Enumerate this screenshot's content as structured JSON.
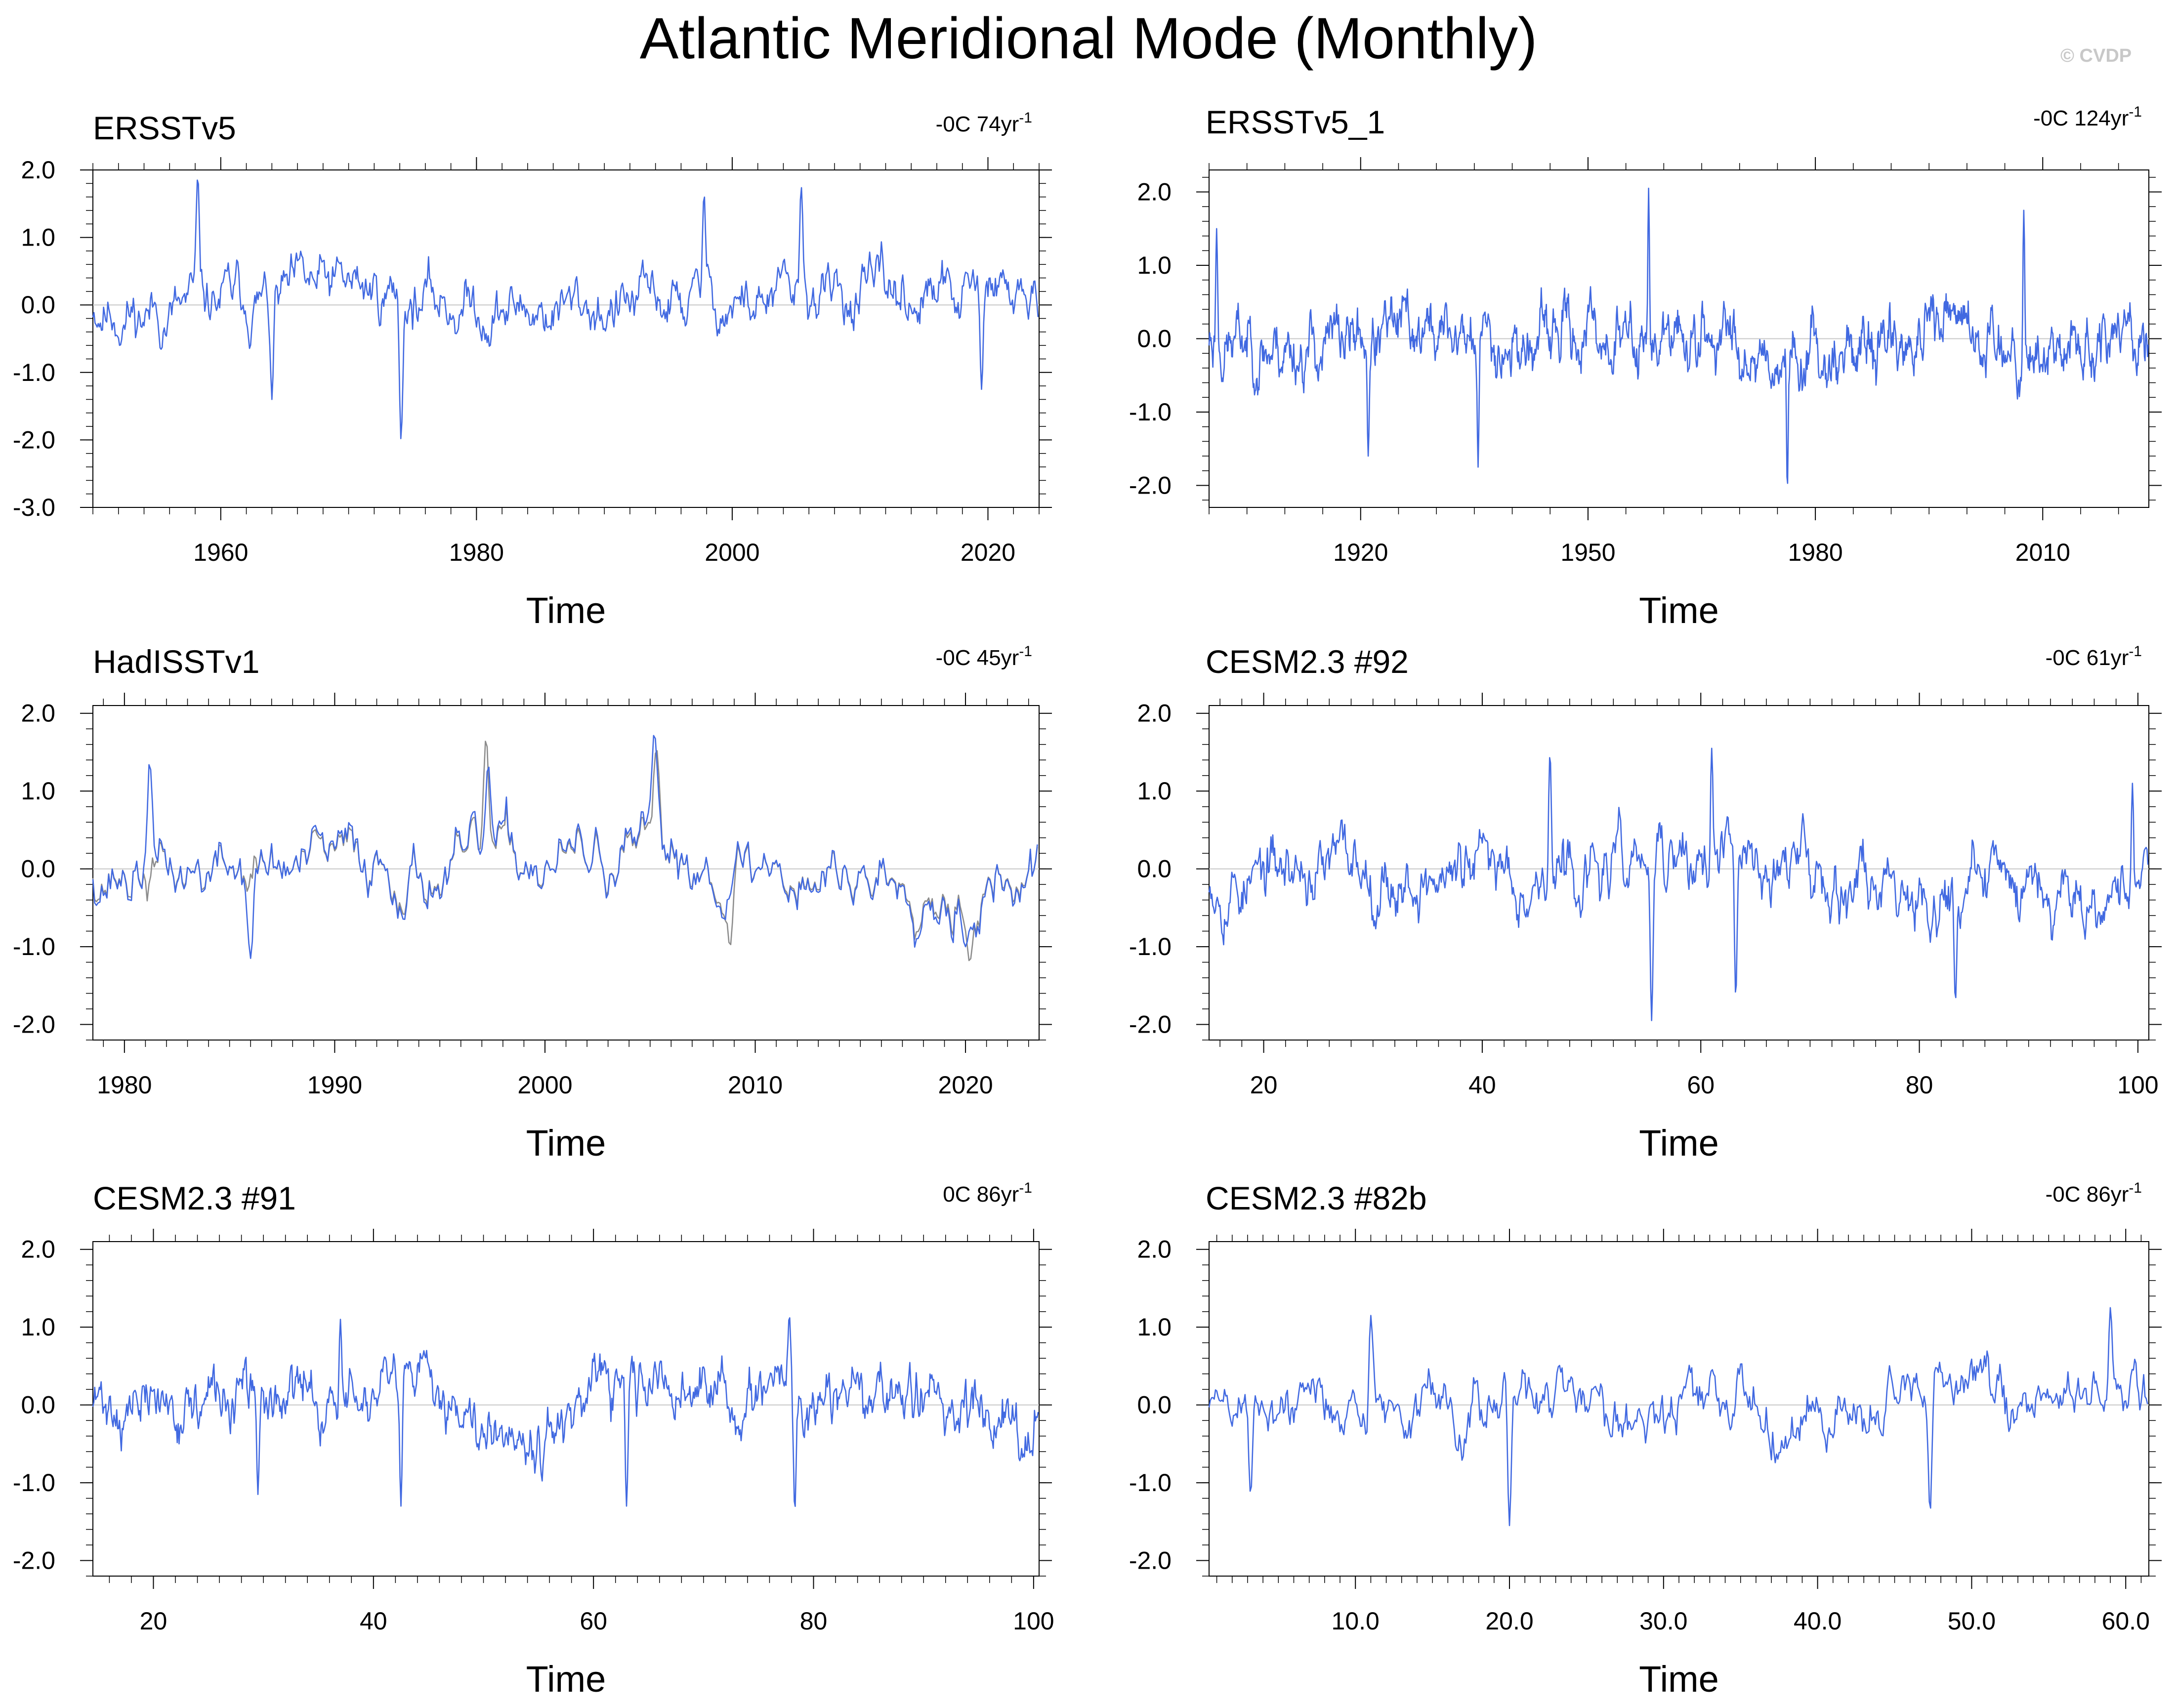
{
  "title": "Atlantic Meridional Mode (Monthly)",
  "watermark": "© CVDP",
  "colors": {
    "model_line": "#4169e1",
    "obs_line": "#8c8c8c",
    "zero_line": "#c8c8c8",
    "frame": "#000000"
  },
  "chart_data": [
    {
      "type": "line",
      "title": "ERSSTv5",
      "trend_label": "-0C 74yr",
      "trend_superscript": "-1",
      "xlabel": "Time",
      "xlim": [
        1950,
        2024
      ],
      "ylim": [
        -3.0,
        2.0
      ],
      "xticks": [
        1960,
        1980,
        2000,
        2020
      ],
      "xtick_labels": [
        "1960",
        "1980",
        "2000",
        "2020"
      ],
      "yticks": [
        2.0,
        1.0,
        0.0,
        -1.0,
        -2.0,
        -3.0
      ],
      "ytick_labels": [
        "2.0",
        "1.0",
        "0.0",
        "-1.0",
        "-2.0",
        "-3.0"
      ],
      "x_minor_step": 2,
      "y_minor_step": 0.2,
      "zero_line": true,
      "series": [
        {
          "color": "#4169e1",
          "seed": 11,
          "ampl": 0.5,
          "key_points": [
            [
              1958.2,
              1.9
            ],
            [
              1974.1,
              -2.0
            ],
            [
              1997.8,
              1.65
            ],
            [
              2005.4,
              1.75
            ],
            [
              1964.0,
              -1.4
            ],
            [
              2019.5,
              -1.25
            ]
          ]
        }
      ]
    },
    {
      "type": "line",
      "title": "ERSSTv5_1",
      "trend_label": "-0C 124yr",
      "trend_superscript": "-1",
      "xlabel": "Time",
      "xlim": [
        1900,
        2024
      ],
      "ylim": [
        -2.3,
        2.3
      ],
      "xticks": [
        1920,
        1950,
        1980,
        2010
      ],
      "xtick_labels": [
        "1920",
        "1950",
        "1980",
        "2010"
      ],
      "yticks": [
        2.0,
        1.0,
        0.0,
        -1.0,
        -2.0
      ],
      "ytick_labels": [
        "2.0",
        "1.0",
        "0.0",
        "-1.0",
        "-2.0"
      ],
      "x_minor_step": 5,
      "y_minor_step": 0.2,
      "zero_line": true,
      "series": [
        {
          "color": "#4169e1",
          "seed": 23,
          "ampl": 0.5,
          "key_points": [
            [
              1958.0,
              2.05
            ],
            [
              1976.3,
              -2.05
            ],
            [
              1921.0,
              -1.6
            ],
            [
              1935.5,
              -1.75
            ],
            [
              2007.5,
              1.75
            ],
            [
              1901.0,
              1.5
            ]
          ]
        }
      ]
    },
    {
      "type": "line",
      "title": "HadISSTv1",
      "trend_label": "-0C 45yr",
      "trend_superscript": "-1",
      "xlabel": "Time",
      "xlim": [
        1978.5,
        2023.5
      ],
      "ylim": [
        -2.2,
        2.1
      ],
      "xticks": [
        1980,
        1990,
        2000,
        2010,
        2020
      ],
      "xtick_labels": [
        "1980",
        "1990",
        "2000",
        "2010",
        "2020"
      ],
      "yticks": [
        2.0,
        1.0,
        0.0,
        -1.0,
        -2.0
      ],
      "ytick_labels": [
        "2.0",
        "1.0",
        "0.0",
        "-1.0",
        "-2.0"
      ],
      "x_minor_step": 1,
      "y_minor_step": 0.2,
      "zero_line": true,
      "series": [
        {
          "color": "#8c8c8c",
          "seed": 37,
          "ampl": 0.45,
          "key_points": [
            [
              1997.2,
              1.7
            ],
            [
              2005.3,
              1.55
            ],
            [
              2020.2,
              -1.2
            ],
            [
              2008.8,
              -1.0
            ]
          ]
        },
        {
          "color": "#4169e1",
          "seed": 37,
          "ampl": 0.5,
          "key_points": [
            [
              2005.2,
              1.75
            ],
            [
              1997.3,
              1.35
            ],
            [
              1981.2,
              1.4
            ],
            [
              1986.0,
              -1.15
            ],
            [
              2020.0,
              -1.0
            ]
          ]
        }
      ]
    },
    {
      "type": "line",
      "title": "CESM2.3 #92",
      "trend_label": "-0C 61yr",
      "trend_superscript": "-1",
      "xlabel": "Time",
      "xlim": [
        15,
        101
      ],
      "ylim": [
        -2.2,
        2.1
      ],
      "xticks": [
        20,
        40,
        60,
        80,
        100
      ],
      "xtick_labels": [
        "20",
        "40",
        "60",
        "80",
        "100"
      ],
      "yticks": [
        2.0,
        1.0,
        0.0,
        -1.0,
        -2.0
      ],
      "ytick_labels": [
        "2.0",
        "1.0",
        "0.0",
        "-1.0",
        "-2.0"
      ],
      "x_minor_step": 2,
      "y_minor_step": 0.2,
      "zero_line": true,
      "series": [
        {
          "color": "#4169e1",
          "seed": 53,
          "ampl": 0.5,
          "key_points": [
            [
              55.5,
              -1.95
            ],
            [
              61.0,
              1.55
            ],
            [
              63.2,
              -1.65
            ],
            [
              83.3,
              -1.7
            ],
            [
              46.2,
              1.5
            ],
            [
              99.5,
              1.1
            ]
          ]
        }
      ]
    },
    {
      "type": "line",
      "title": "CESM2.3 #91",
      "trend_label": "0C 86yr",
      "trend_superscript": "-1",
      "xlabel": "Time",
      "xlim": [
        14.5,
        100.5
      ],
      "ylim": [
        -2.2,
        2.1
      ],
      "xticks": [
        20,
        40,
        60,
        80,
        100
      ],
      "xtick_labels": [
        "20",
        "40",
        "60",
        "80",
        "100"
      ],
      "yticks": [
        2.0,
        1.0,
        0.0,
        -1.0,
        -2.0
      ],
      "ytick_labels": [
        "2.0",
        "1.0",
        "0.0",
        "-1.0",
        "-2.0"
      ],
      "x_minor_step": 2,
      "y_minor_step": 0.2,
      "zero_line": true,
      "series": [
        {
          "color": "#4169e1",
          "seed": 71,
          "ampl": 0.45,
          "key_points": [
            [
              77.8,
              1.15
            ],
            [
              37.0,
              1.1
            ],
            [
              63.0,
              -1.3
            ],
            [
              78.3,
              -1.35
            ],
            [
              42.5,
              -1.3
            ],
            [
              29.5,
              -1.15
            ]
          ]
        }
      ]
    },
    {
      "type": "line",
      "title": "CESM2.3 #82b",
      "trend_label": "-0C 86yr",
      "trend_superscript": "-1",
      "xlabel": "Time",
      "xlim": [
        0.5,
        61.5
      ],
      "ylim": [
        -2.2,
        2.1
      ],
      "xticks": [
        10,
        20,
        30,
        40,
        50,
        60
      ],
      "xtick_labels": [
        "10.0",
        "20.0",
        "30.0",
        "40.0",
        "50.0",
        "60.0"
      ],
      "yticks": [
        2.0,
        1.0,
        0.0,
        -1.0,
        -2.0
      ],
      "ytick_labels": [
        "2.0",
        "1.0",
        "0.0",
        "-1.0",
        "-2.0"
      ],
      "x_minor_step": 1,
      "y_minor_step": 0.2,
      "zero_line": true,
      "series": [
        {
          "color": "#4169e1",
          "seed": 89,
          "ampl": 0.45,
          "key_points": [
            [
              59.0,
              1.25
            ],
            [
              20.0,
              -1.55
            ],
            [
              47.3,
              -1.4
            ],
            [
              11.0,
              1.15
            ],
            [
              3.2,
              -1.15
            ]
          ]
        }
      ]
    }
  ]
}
